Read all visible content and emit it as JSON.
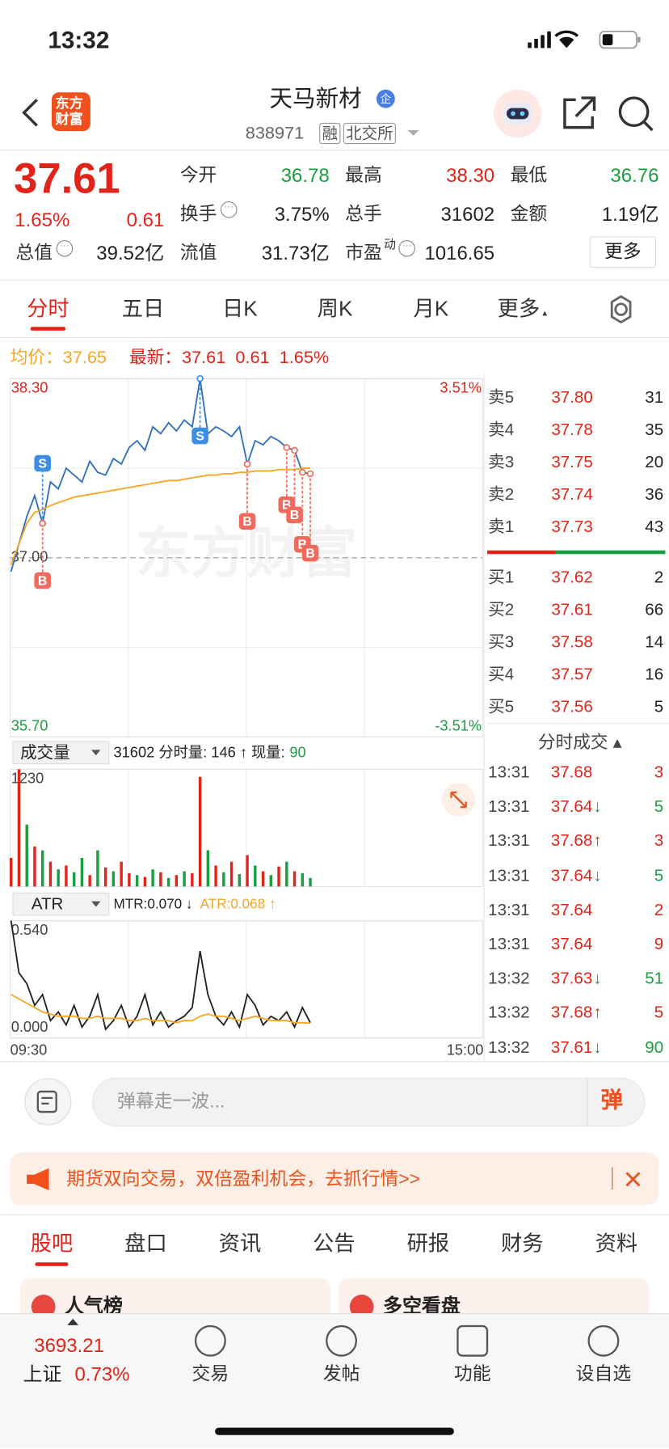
{
  "status_bar": {
    "time": "13:32"
  },
  "header": {
    "logo": [
      "东方",
      "财富"
    ],
    "title": "天马新材",
    "badge": "企",
    "code": "838971",
    "tags": [
      "融",
      "北交所"
    ]
  },
  "quote": {
    "price": "37.61",
    "change_pct": "1.65%",
    "change": "0.61",
    "fields": [
      {
        "label": "今开",
        "value": "36.78"
      },
      {
        "label": "最高",
        "value": "38.30"
      },
      {
        "label": "最低",
        "value": "36.76"
      },
      {
        "label": "换手",
        "value": "3.75%"
      },
      {
        "label": "总手",
        "value": "31602"
      },
      {
        "label": "金额",
        "value": "1.19亿"
      },
      {
        "label": "总值",
        "value": "39.52亿"
      },
      {
        "label": "流值",
        "value": "31.73亿"
      },
      {
        "label": "市盈",
        "label_sup": "动",
        "value": "1016.65"
      }
    ],
    "more": "更多"
  },
  "period_tabs": [
    "分时",
    "五日",
    "日K",
    "周K",
    "月K",
    "更多"
  ],
  "summary": {
    "avg_label": "均价：",
    "avg": "37.65",
    "latest_label": "最新：",
    "latest": "37.61",
    "change": "0.61",
    "change_pct": "1.65%"
  },
  "watermark": "东方财富",
  "chart_data": [
    {
      "type": "line",
      "series": [
        {
          "color": "#2f6fbf",
          "values": [
            36.9,
            37.1,
            37.3,
            37.45,
            37.25,
            37.55,
            37.5,
            37.65,
            37.6,
            37.55,
            37.7,
            37.62,
            37.6,
            37.72,
            37.68,
            37.8,
            37.85,
            37.78,
            37.95,
            37.9,
            37.98,
            37.92,
            38.0,
            37.95,
            38.3,
            37.9,
            37.95,
            37.92,
            37.88,
            37.95,
            37.68,
            37.85,
            37.82,
            37.88,
            37.85,
            37.8,
            37.78,
            37.62,
            37.61
          ]
        },
        {
          "color": "#f5a623",
          "values": [
            36.95,
            37.1,
            37.25,
            37.33,
            37.35,
            37.38,
            37.4,
            37.42,
            37.44,
            37.45,
            37.46,
            37.47,
            37.48,
            37.49,
            37.5,
            37.51,
            37.52,
            37.53,
            37.54,
            37.55,
            37.56,
            37.56,
            37.57,
            37.58,
            37.59,
            37.6,
            37.6,
            37.61,
            37.61,
            37.62,
            37.62,
            37.63,
            37.63,
            37.63,
            37.64,
            37.64,
            37.64,
            37.65,
            37.65
          ]
        }
      ],
      "ylim": [
        35.7,
        38.3
      ],
      "yticks": [
        {
          "value": 38.3,
          "label": "38.30"
        },
        {
          "value": 37.0,
          "label": "37.00"
        },
        {
          "value": 35.7,
          "label": "35.70"
        }
      ],
      "y2lim": [
        -3.51,
        3.51
      ],
      "y2ticks": [
        {
          "value": 3.51,
          "label": "3.51%"
        },
        {
          "value": -3.51,
          "label": "-3.51%"
        }
      ],
      "markers": [
        {
          "text": "S",
          "index": 4,
          "color": "#3a8ee6"
        },
        {
          "text": "B",
          "index": 4,
          "color": "#f06a5d"
        },
        {
          "text": "S",
          "index": 24,
          "color": "#3a8ee6"
        },
        {
          "text": "B",
          "index": 30,
          "color": "#f06a5d"
        },
        {
          "text": "B",
          "index": 35,
          "color": "#f06a5d"
        },
        {
          "text": "B",
          "index": 36,
          "color": "#f06a5d"
        },
        {
          "text": "B",
          "index": 37,
          "color": "#f06a5d"
        },
        {
          "text": "B",
          "index": 38,
          "color": "#f06a5d"
        }
      ]
    },
    {
      "type": "bar",
      "indicator": "成交量",
      "info": "31602 分时量: 146 ↑ 现量:",
      "info_value": "90",
      "values": [
        300,
        1230,
        650,
        420,
        380,
        260,
        180,
        220,
        150,
        300,
        120,
        380,
        200,
        160,
        260,
        140,
        120,
        100,
        180,
        150,
        90,
        120,
        160,
        140,
        1150,
        380,
        220,
        150,
        260,
        130,
        330,
        220,
        160,
        120,
        210,
        260,
        160,
        140,
        90
      ],
      "colors": [
        "#e2231a",
        "#e2231a",
        "#1a9e3f",
        "#e2231a",
        "#1a9e3f",
        "#e2231a",
        "#1a9e3f",
        "#e2231a",
        "#1a9e3f",
        "#1a9e3f",
        "#e2231a",
        "#1a9e3f",
        "#e2231a",
        "#1a9e3f",
        "#e2231a",
        "#e2231a",
        "#1a9e3f",
        "#e2231a",
        "#1a9e3f",
        "#e2231a",
        "#1a9e3f",
        "#e2231a",
        "#1a9e3f",
        "#e2231a",
        "#e2231a",
        "#1a9e3f",
        "#e2231a",
        "#1a9e3f",
        "#e2231a",
        "#1a9e3f",
        "#e2231a",
        "#1a9e3f",
        "#e2231a",
        "#1a9e3f",
        "#e2231a",
        "#1a9e3f",
        "#e2231a",
        "#1a9e3f",
        "#1a9e3f"
      ],
      "ylim": [
        0,
        1230
      ],
      "yticks": [
        1230
      ]
    },
    {
      "type": "line",
      "indicator": "ATR",
      "series": [
        {
          "name": "MTR:0.070 ↓",
          "color": "#222222",
          "values": [
            0.54,
            0.3,
            0.25,
            0.15,
            0.2,
            0.08,
            0.12,
            0.06,
            0.15,
            0.05,
            0.1,
            0.2,
            0.04,
            0.08,
            0.15,
            0.05,
            0.1,
            0.2,
            0.06,
            0.12,
            0.05,
            0.08,
            0.1,
            0.14,
            0.4,
            0.2,
            0.1,
            0.06,
            0.12,
            0.05,
            0.2,
            0.15,
            0.06,
            0.1,
            0.08,
            0.12,
            0.05,
            0.14,
            0.07
          ]
        },
        {
          "name": "ATR:0.068 ↑",
          "color": "#f5a623",
          "values": [
            0.2,
            0.18,
            0.16,
            0.14,
            0.12,
            0.11,
            0.1,
            0.1,
            0.1,
            0.09,
            0.09,
            0.1,
            0.09,
            0.09,
            0.09,
            0.08,
            0.08,
            0.09,
            0.08,
            0.08,
            0.08,
            0.07,
            0.08,
            0.08,
            0.1,
            0.11,
            0.1,
            0.1,
            0.09,
            0.08,
            0.09,
            0.1,
            0.09,
            0.08,
            0.08,
            0.08,
            0.07,
            0.07,
            0.068
          ]
        }
      ],
      "ylim": [
        0,
        0.54
      ],
      "yticks": [
        {
          "value": 0.54,
          "label": "0.540"
        },
        {
          "value": 0,
          "label": "0.000"
        }
      ],
      "xticks": [
        "09:30",
        "15:00"
      ]
    }
  ],
  "order_book": {
    "asks": [
      {
        "label": "卖5",
        "price": "37.80",
        "volume": 31
      },
      {
        "label": "卖4",
        "price": "37.78",
        "volume": 35
      },
      {
        "label": "卖3",
        "price": "37.75",
        "volume": 20
      },
      {
        "label": "卖2",
        "price": "37.74",
        "volume": 36
      },
      {
        "label": "卖1",
        "price": "37.73",
        "volume": 43
      }
    ],
    "bids": [
      {
        "label": "买1",
        "price": "37.62",
        "volume": 2
      },
      {
        "label": "买2",
        "price": "37.61",
        "volume": 66
      },
      {
        "label": "买3",
        "price": "37.58",
        "volume": 14
      },
      {
        "label": "买4",
        "price": "37.57",
        "volume": 16
      },
      {
        "label": "买5",
        "price": "37.56",
        "volume": 5
      }
    ]
  },
  "trades": {
    "title": "分时成交",
    "rows": [
      {
        "time": "13:31",
        "price": "37.68",
        "volume": 3,
        "volume_color": "#e2231a"
      },
      {
        "time": "13:31",
        "price": "37.64",
        "arrow": "↓",
        "volume": 5,
        "volume_color": "#1a9e3f"
      },
      {
        "time": "13:31",
        "price": "37.68",
        "arrow": "↑",
        "volume": 3,
        "volume_color": "#e2231a"
      },
      {
        "time": "13:31",
        "price": "37.64",
        "arrow": "↓",
        "volume": 5,
        "volume_color": "#1a9e3f"
      },
      {
        "time": "13:31",
        "price": "37.64",
        "volume": 2,
        "volume_color": "#e2231a"
      },
      {
        "time": "13:31",
        "price": "37.64",
        "volume": 9,
        "volume_color": "#e2231a"
      },
      {
        "time": "13:32",
        "price": "37.63",
        "arrow": "↓",
        "volume": 51,
        "volume_color": "#1a9e3f"
      },
      {
        "time": "13:32",
        "price": "37.68",
        "arrow": "↑",
        "volume": 5,
        "volume_color": "#e2231a"
      },
      {
        "time": "13:32",
        "price": "37.61",
        "arrow": "↓",
        "volume": 90,
        "volume_color": "#1a9e3f"
      }
    ]
  },
  "comment": {
    "placeholder": "弹幕走一波...",
    "button": "弹"
  },
  "banner": {
    "text": "期货双向交易，双倍盈利机会，去抓行情>>"
  },
  "news_tabs": [
    "股吧",
    "盘口",
    "资讯",
    "公告",
    "研报",
    "财务",
    "资料"
  ],
  "cards": [
    "人气榜",
    "多空看盘"
  ],
  "bottom_nav": {
    "index": {
      "value": "3693.21",
      "name": "上证",
      "change_pct": "0.73%"
    },
    "items": [
      "交易",
      "发帖",
      "功能",
      "设自选"
    ]
  }
}
